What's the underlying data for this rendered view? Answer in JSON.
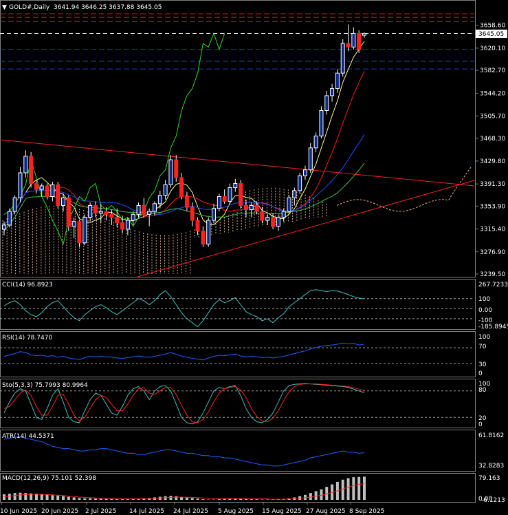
{
  "symbol_header": {
    "symbol": "GOLD#,Daily",
    "ohlc": "3641.94 3646.25 3637.88 3645.05"
  },
  "colors": {
    "bull": "#ffffff",
    "bear": "#ff2020",
    "trendline": "#ff2020",
    "ma_yellow": "#ffff80",
    "ma_red": "#ff1a1a",
    "ma_blue": "#1a50ff",
    "ma_green": "#40c040",
    "chikou": "#20e020",
    "cloud": "#e8b090",
    "cci": "#40c0c0",
    "rsi": "#2060ff",
    "stoch_main": "#40c0c0",
    "stoch_signal": "#ff2020",
    "atr": "#2060ff",
    "macd_hist": "#c0c0c0",
    "macd_signal": "#ff2020",
    "level_red": "#c02020",
    "level_white": "#ffffff",
    "level_blue": "#2040c0"
  },
  "price_axis": {
    "labels": [
      "3658.60",
      "3620.10",
      "3582.70",
      "3544.20",
      "3505.70",
      "3468.30",
      "3429.80",
      "3391.30",
      "3353.90",
      "3315.40",
      "3276.90",
      "3239.50"
    ],
    "current_price": "3645.05"
  },
  "date_axis": [
    "10 Jun 2025",
    "20 Jun 2025",
    "2 Jul 2025",
    "14 Jul 2025",
    "24 Jul 2025",
    "5 Aug 2025",
    "15 Aug 2025",
    "27 Aug 2025",
    "8 Sep 2025"
  ],
  "indicators": {
    "cci": {
      "header": "CCI(14) 96.8923",
      "levels": [
        "267.7233",
        "100",
        "0.00",
        "-100",
        "-185.8945"
      ]
    },
    "rsi": {
      "header": "RSI(14) 78.7470",
      "levels": [
        "100",
        "70",
        "30",
        "0"
      ]
    },
    "stoch": {
      "header": "Sto(5,3,3) 75.7993 80.9964",
      "levels": [
        "100",
        "80",
        "20",
        "0"
      ]
    },
    "atr": {
      "header": "ATR(14) 44.5371",
      "levels": [
        "61.8162",
        "32.8283"
      ]
    },
    "macd": {
      "header": "MACD(12,26,9) 75.101 52.398",
      "levels": [
        "79.163",
        "0.00",
        "-6.1213"
      ]
    }
  },
  "chart_data": {
    "type": "candlestick",
    "title": "GOLD#,Daily",
    "ylim": [
      3239.5,
      3678
    ],
    "candles": [
      [
        3315,
        3328,
        3305,
        3322
      ],
      [
        3322,
        3350,
        3318,
        3345
      ],
      [
        3345,
        3372,
        3340,
        3368
      ],
      [
        3368,
        3420,
        3360,
        3410
      ],
      [
        3410,
        3448,
        3402,
        3438
      ],
      [
        3438,
        3445,
        3385,
        3392
      ],
      [
        3392,
        3398,
        3375,
        3382
      ],
      [
        3382,
        3392,
        3370,
        3388
      ],
      [
        3388,
        3392,
        3365,
        3370
      ],
      [
        3370,
        3395,
        3362,
        3390
      ],
      [
        3390,
        3395,
        3350,
        3355
      ],
      [
        3355,
        3375,
        3345,
        3368
      ],
      [
        3368,
        3372,
        3312,
        3320
      ],
      [
        3320,
        3335,
        3300,
        3328
      ],
      [
        3328,
        3330,
        3285,
        3292
      ],
      [
        3292,
        3340,
        3288,
        3335
      ],
      [
        3335,
        3360,
        3328,
        3355
      ],
      [
        3355,
        3362,
        3335,
        3342
      ],
      [
        3342,
        3358,
        3325,
        3345
      ],
      [
        3345,
        3352,
        3330,
        3340
      ],
      [
        3340,
        3348,
        3322,
        3335
      ],
      [
        3335,
        3350,
        3318,
        3326
      ],
      [
        3326,
        3338,
        3308,
        3315
      ],
      [
        3315,
        3335,
        3305,
        3330
      ],
      [
        3330,
        3345,
        3322,
        3340
      ],
      [
        3340,
        3360,
        3335,
        3355
      ],
      [
        3355,
        3368,
        3335,
        3340
      ],
      [
        3340,
        3350,
        3320,
        3345
      ],
      [
        3345,
        3362,
        3338,
        3358
      ],
      [
        3358,
        3380,
        3350,
        3372
      ],
      [
        3372,
        3398,
        3365,
        3390
      ],
      [
        3390,
        3440,
        3385,
        3432
      ],
      [
        3432,
        3440,
        3395,
        3402
      ],
      [
        3402,
        3410,
        3365,
        3370
      ],
      [
        3370,
        3378,
        3345,
        3352
      ],
      [
        3352,
        3360,
        3320,
        3330
      ],
      [
        3330,
        3335,
        3305,
        3312
      ],
      [
        3312,
        3320,
        3285,
        3290
      ],
      [
        3290,
        3335,
        3285,
        3330
      ],
      [
        3330,
        3358,
        3325,
        3350
      ],
      [
        3350,
        3375,
        3345,
        3370
      ],
      [
        3370,
        3382,
        3358,
        3362
      ],
      [
        3362,
        3392,
        3358,
        3385
      ],
      [
        3385,
        3400,
        3378,
        3392
      ],
      [
        3392,
        3398,
        3350,
        3355
      ],
      [
        3355,
        3365,
        3335,
        3348
      ],
      [
        3348,
        3360,
        3335,
        3355
      ],
      [
        3355,
        3362,
        3340,
        3345
      ],
      [
        3345,
        3352,
        3325,
        3330
      ],
      [
        3330,
        3340,
        3322,
        3335
      ],
      [
        3335,
        3342,
        3315,
        3320
      ],
      [
        3320,
        3340,
        3312,
        3335
      ],
      [
        3335,
        3350,
        3328,
        3345
      ],
      [
        3345,
        3372,
        3340,
        3368
      ],
      [
        3368,
        3385,
        3355,
        3380
      ],
      [
        3380,
        3410,
        3375,
        3405
      ],
      [
        3405,
        3422,
        3398,
        3415
      ],
      [
        3415,
        3460,
        3410,
        3452
      ],
      [
        3452,
        3478,
        3445,
        3472
      ],
      [
        3472,
        3522,
        3468,
        3515
      ],
      [
        3515,
        3548,
        3508,
        3540
      ],
      [
        3540,
        3560,
        3530,
        3552
      ],
      [
        3552,
        3585,
        3545,
        3578
      ],
      [
        3578,
        3635,
        3572,
        3628
      ],
      [
        3628,
        3660,
        3615,
        3622
      ],
      [
        3622,
        3655,
        3618,
        3645
      ],
      [
        3645,
        3650,
        3612,
        3618
      ],
      [
        3641.94,
        3646.25,
        3637.88,
        3645.05
      ]
    ],
    "levels": {
      "red": [
        3665,
        3672,
        3678
      ],
      "white": [
        3645
      ],
      "blue": [
        3618,
        3598,
        3585
      ]
    },
    "cci": [
      30,
      60,
      80,
      40,
      -20,
      -60,
      -80,
      -40,
      20,
      60,
      80,
      20,
      -40,
      -90,
      -120,
      -60,
      -20,
      20,
      40,
      10,
      -30,
      -60,
      -20,
      20,
      60,
      100,
      80,
      40,
      80,
      140,
      180,
      120,
      40,
      -40,
      -100,
      -140,
      -180,
      -120,
      -40,
      40,
      90,
      60,
      80,
      110,
      40,
      -30,
      -60,
      -80,
      -120,
      -100,
      -140,
      -90,
      -50,
      20,
      60,
      100,
      140,
      180,
      190,
      180,
      170,
      180,
      175,
      160,
      140,
      120,
      105,
      97
    ],
    "rsi": [
      48,
      52,
      55,
      60,
      58,
      52,
      50,
      51,
      48,
      50,
      46,
      48,
      44,
      42,
      40,
      45,
      48,
      47,
      48,
      47,
      46,
      44,
      43,
      45,
      47,
      49,
      47,
      46,
      48,
      51,
      54,
      58,
      53,
      49,
      46,
      43,
      41,
      39,
      44,
      48,
      51,
      50,
      52,
      54,
      49,
      47,
      48,
      47,
      45,
      46,
      44,
      46,
      48,
      52,
      55,
      59,
      62,
      67,
      70,
      74,
      76,
      77,
      79,
      82,
      80,
      81,
      77,
      79
    ],
    "stoch": {
      "main": [
        30,
        55,
        75,
        85,
        80,
        50,
        20,
        15,
        40,
        70,
        85,
        55,
        20,
        10,
        8,
        35,
        60,
        75,
        70,
        50,
        30,
        25,
        45,
        70,
        85,
        90,
        80,
        60,
        80,
        90,
        92,
        80,
        50,
        20,
        8,
        5,
        10,
        30,
        55,
        80,
        88,
        85,
        90,
        92,
        70,
        40,
        20,
        10,
        8,
        15,
        30,
        55,
        80,
        92,
        95,
        96,
        97,
        96,
        95,
        94,
        93,
        92,
        91,
        90,
        88,
        84,
        80,
        76
      ],
      "signal": [
        40,
        45,
        60,
        75,
        82,
        70,
        45,
        25,
        25,
        45,
        70,
        72,
        50,
        25,
        12,
        20,
        40,
        60,
        70,
        65,
        50,
        35,
        35,
        50,
        70,
        85,
        87,
        75,
        72,
        80,
        88,
        88,
        72,
        48,
        25,
        10,
        8,
        15,
        32,
        55,
        75,
        85,
        88,
        90,
        82,
        65,
        40,
        22,
        12,
        10,
        18,
        35,
        58,
        78,
        90,
        95,
        96,
        96,
        96,
        95,
        94,
        93,
        92,
        91,
        90,
        87,
        84,
        81
      ]
    },
    "atr": [
      56,
      57,
      58,
      58,
      57,
      56,
      55,
      54,
      52,
      50,
      49,
      48,
      48,
      47,
      46,
      46,
      47,
      47,
      48,
      48,
      47,
      46,
      45,
      44,
      44,
      43,
      43,
      44,
      45,
      46,
      47,
      47,
      46,
      45,
      44,
      44,
      43,
      42,
      42,
      41,
      41,
      40,
      40,
      39,
      38,
      37,
      36,
      35,
      34,
      34,
      33,
      33,
      34,
      35,
      36,
      37,
      38,
      40,
      41,
      42,
      43,
      44,
      45,
      46,
      45,
      45,
      44,
      44.5
    ],
    "macd": {
      "hist": [
        18,
        20,
        22,
        23,
        22,
        21,
        20,
        19,
        17,
        15,
        14,
        12,
        10,
        8,
        6,
        5,
        5,
        4,
        4,
        3,
        3,
        2,
        2,
        2,
        3,
        4,
        5,
        6,
        8,
        10,
        12,
        13,
        12,
        10,
        8,
        6,
        4,
        2,
        1,
        1,
        2,
        3,
        4,
        5,
        4,
        3,
        2,
        2,
        1,
        1,
        1,
        2,
        3,
        5,
        8,
        12,
        16,
        22,
        28,
        34,
        42,
        50,
        58,
        65,
        70,
        73,
        74,
        75
      ],
      "signal": [
        10,
        12,
        14,
        16,
        17,
        18,
        18,
        18,
        17,
        16,
        15,
        14,
        12,
        11,
        9,
        8,
        7,
        6,
        5,
        5,
        4,
        4,
        3,
        3,
        3,
        3,
        4,
        4,
        5,
        6,
        7,
        8,
        9,
        9,
        8,
        8,
        7,
        6,
        5,
        4,
        4,
        4,
        4,
        4,
        4,
        4,
        3,
        3,
        3,
        3,
        2,
        2,
        2,
        3,
        4,
        5,
        7,
        9,
        12,
        15,
        19,
        24,
        29,
        35,
        41,
        46,
        50,
        52
      ]
    }
  }
}
